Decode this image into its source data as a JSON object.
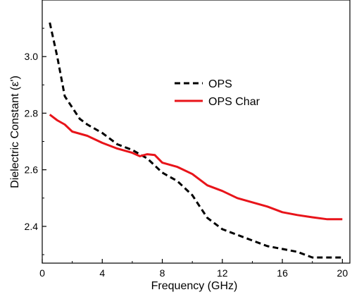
{
  "chart_data": {
    "type": "line",
    "xlabel": "Frequency (GHz)",
    "ylabel": "Dielectric Constant (ε')",
    "xlim": [
      0,
      20.5
    ],
    "ylim": [
      2.27,
      3.2
    ],
    "xticks": [
      0,
      4,
      8,
      12,
      16,
      20
    ],
    "yticks": [
      2.4,
      2.6,
      2.8,
      3.0
    ],
    "xtick_labels": [
      "0",
      "4",
      "8",
      "12",
      "16",
      "20"
    ],
    "ytick_labels": [
      "2.4",
      "2.6",
      "2.8",
      "3.0"
    ],
    "grid": false,
    "legend_position": "center-right",
    "series": [
      {
        "name": "OPS",
        "color": "#000000",
        "style": "dashed",
        "x": [
          0.5,
          1.0,
          1.5,
          2.0,
          2.5,
          3.0,
          4.0,
          5.0,
          6.0,
          7.0,
          8.0,
          9.0,
          10.0,
          10.5,
          11.0,
          11.5,
          12.0,
          13.0,
          14.0,
          15.0,
          16.0,
          17.0,
          18.0,
          19.0,
          20.0
        ],
        "y": [
          3.12,
          3.0,
          2.86,
          2.82,
          2.78,
          2.76,
          2.73,
          2.69,
          2.67,
          2.64,
          2.59,
          2.56,
          2.51,
          2.47,
          2.43,
          2.41,
          2.39,
          2.37,
          2.35,
          2.33,
          2.32,
          2.31,
          2.29,
          2.29,
          2.29
        ]
      },
      {
        "name": "OPS Char",
        "color": "#e8141a",
        "style": "solid",
        "x": [
          0.5,
          1.0,
          1.5,
          2.0,
          3.0,
          4.0,
          5.0,
          6.0,
          6.5,
          7.0,
          7.5,
          8.0,
          9.0,
          10.0,
          11.0,
          12.0,
          13.0,
          14.0,
          15.0,
          16.0,
          17.0,
          18.0,
          19.0,
          20.0
        ],
        "y": [
          2.795,
          2.775,
          2.76,
          2.735,
          2.72,
          2.695,
          2.675,
          2.66,
          2.648,
          2.655,
          2.652,
          2.625,
          2.61,
          2.585,
          2.545,
          2.525,
          2.5,
          2.485,
          2.47,
          2.45,
          2.44,
          2.432,
          2.425,
          2.425
        ]
      }
    ]
  }
}
